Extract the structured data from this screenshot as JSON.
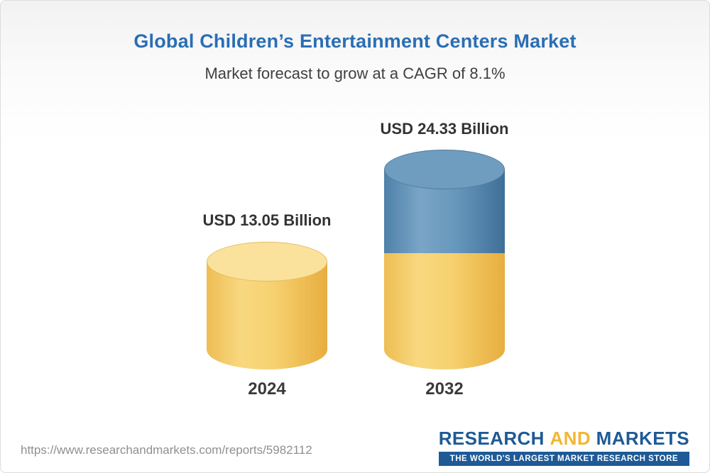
{
  "header": {
    "title": "Global Children’s Entertainment Centers Market",
    "subtitle": "Market forecast to grow at a CAGR of 8.1%"
  },
  "chart_data": {
    "type": "bar",
    "title": "Global Children’s Entertainment Centers Market",
    "subtitle": "Market forecast to grow at a CAGR of 8.1%",
    "categories": [
      "2024",
      "2032"
    ],
    "values": [
      13.05,
      24.33
    ],
    "unit": "USD Billion",
    "cagr_pct": 8.1,
    "bars": [
      {
        "year": "2024",
        "value": 13.05,
        "label": "USD 13.05 Billion",
        "color": "#F6CE68"
      },
      {
        "year": "2032",
        "value": 24.33,
        "label": "USD 24.33 Billion",
        "base_color": "#F6CE68",
        "growth_color": "#5B8DB8"
      }
    ],
    "layout": {
      "legend": "none",
      "grid": "off",
      "style": "3d-cylinder-stacked"
    }
  },
  "footer": {
    "url": "https://www.researchandmarkets.com/reports/5982112",
    "logo": {
      "part1": "RESEARCH",
      "part2": "AND",
      "part3": "MARKETS",
      "tagline": "THE WORLD'S LARGEST MARKET RESEARCH STORE",
      "brand_blue": "#1E5A96",
      "brand_gold": "#F2B633"
    }
  }
}
